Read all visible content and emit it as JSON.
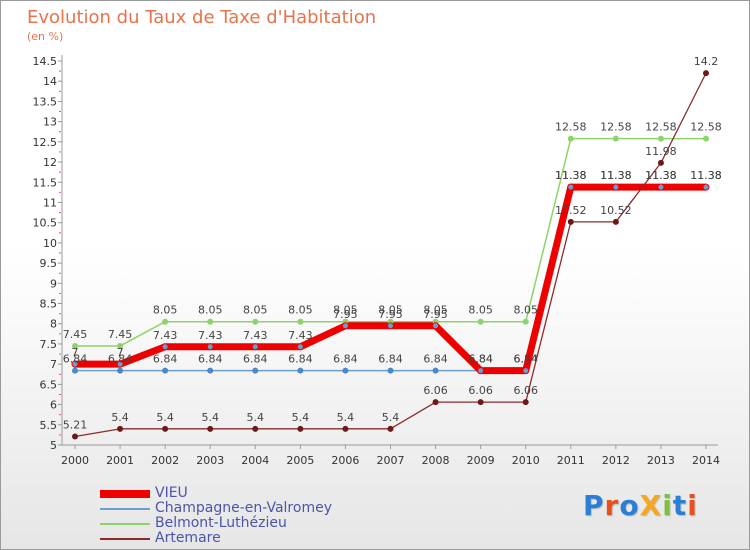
{
  "title": "Evolution du Taux de Taxe d'Habitation",
  "unit": "(en %)",
  "logo": {
    "text": "ProXiti"
  },
  "chart_data": {
    "type": "line",
    "title": "Evolution du Taux de Taxe d'Habitation",
    "ylabel": "(en %)",
    "xlabel": "",
    "ylim": [
      5,
      14.5
    ],
    "yticks": [
      "5",
      "5.5",
      "6",
      "6.5",
      "7",
      "7.5",
      "8",
      "8.5",
      "9",
      "9.5",
      "10",
      "10.5",
      "11",
      "11.5",
      "12",
      "12.5",
      "13",
      "13.5",
      "14",
      "14.5"
    ],
    "categories": [
      "2000",
      "2001",
      "2002",
      "2003",
      "2004",
      "2005",
      "2006",
      "2007",
      "2008",
      "2009",
      "2010",
      "2011",
      "2012",
      "2013",
      "2014"
    ],
    "series": [
      {
        "name": "VIEU",
        "color": "#ee0000",
        "values": [
          7.0,
          7.0,
          7.43,
          7.43,
          7.43,
          7.43,
          7.95,
          7.95,
          7.95,
          6.84,
          6.84,
          11.38,
          11.38,
          11.38,
          11.38
        ],
        "labels": [
          "7",
          "7",
          "7.43",
          "7.43",
          "7.43",
          "7.43",
          "7.95",
          "7.95",
          "7.95",
          "6.84",
          "6.84",
          "11.38",
          "11.38",
          "11.38",
          "11.38"
        ]
      },
      {
        "name": "Champagne-en-Valromey",
        "color": "#6aa0d0",
        "values": [
          6.84,
          6.84,
          6.84,
          6.84,
          6.84,
          6.84,
          6.84,
          6.84,
          6.84,
          6.84,
          6.84,
          11.38,
          11.38,
          11.38,
          11.38
        ],
        "labels": [
          "6.84",
          "6.84",
          "6.84",
          "6.84",
          "6.84",
          "6.84",
          "6.84",
          "6.84",
          "6.84",
          "6.84",
          "6.84",
          "11.38",
          "11.38",
          "11.38",
          "11.38"
        ]
      },
      {
        "name": "Belmont-Luthézieu",
        "color": "#8ed36a",
        "values": [
          7.45,
          7.45,
          8.05,
          8.05,
          8.05,
          8.05,
          8.05,
          8.05,
          8.05,
          8.05,
          8.05,
          12.58,
          12.58,
          12.58,
          12.58
        ],
        "labels": [
          "7.45",
          "7.45",
          "8.05",
          "8.05",
          "8.05",
          "8.05",
          "8.05",
          "8.05",
          "8.05",
          "8.05",
          "8.05",
          "12.58",
          "12.58",
          "12.58",
          "12.58"
        ]
      },
      {
        "name": "Artemare",
        "color": "#8b2c2c",
        "values": [
          5.21,
          5.4,
          5.4,
          5.4,
          5.4,
          5.4,
          5.4,
          5.4,
          6.06,
          6.06,
          6.06,
          10.52,
          10.52,
          11.98,
          14.2
        ],
        "labels": [
          "5.21",
          "5.4",
          "5.4",
          "5.4",
          "5.4",
          "5.4",
          "5.4",
          "5.4",
          "6.06",
          "6.06",
          "6.06",
          "10.52",
          "10.52",
          "11.98",
          "14.2"
        ]
      }
    ]
  }
}
